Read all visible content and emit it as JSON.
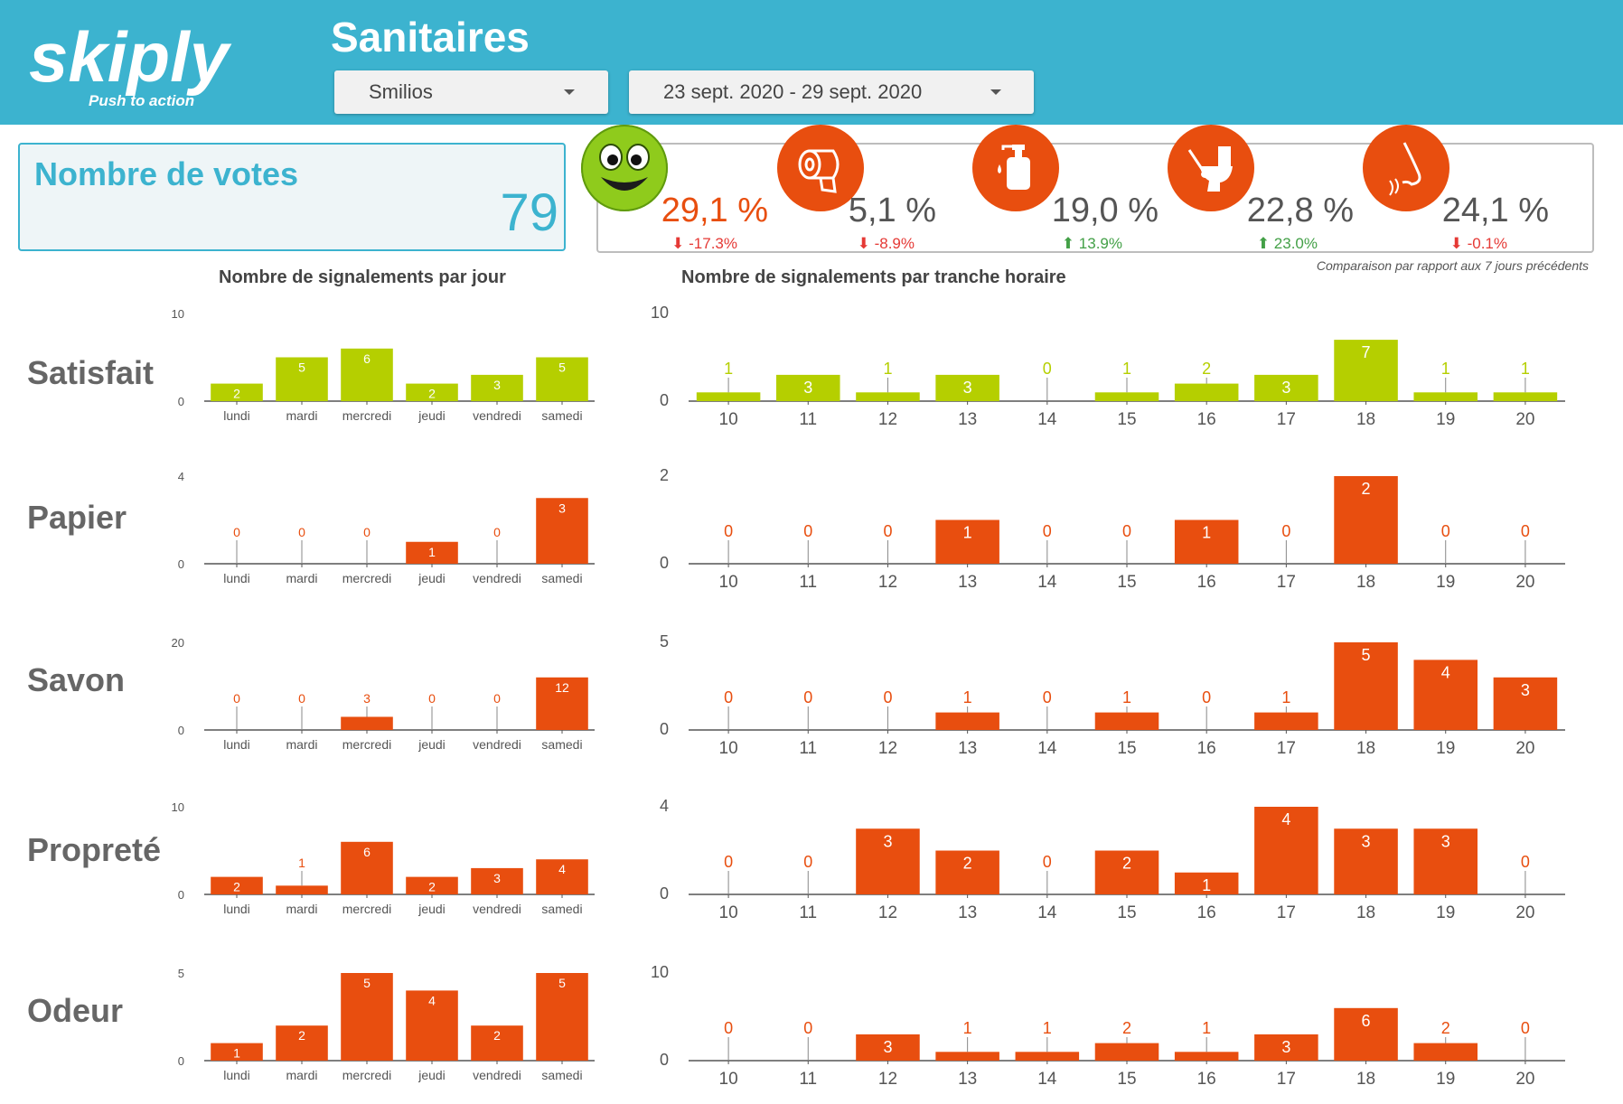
{
  "header": {
    "logo_text": "skiply",
    "logo_tagline": "Push to action",
    "title": "Sanitaires",
    "site_select": "Smilios",
    "date_select": "23 sept. 2020 - 29 sept. 2020"
  },
  "votes": {
    "label": "Nombre de votes",
    "value": "79"
  },
  "kpis": [
    {
      "icon": "smiley-icon",
      "value": "29,1 %",
      "delta": "-17.3%",
      "trend": "down"
    },
    {
      "icon": "toilet-paper-icon",
      "value": "5,1 %",
      "delta": "-8.9%",
      "trend": "down"
    },
    {
      "icon": "soap-icon",
      "value": "19,0 %",
      "delta": "13.9%",
      "trend": "up"
    },
    {
      "icon": "toilet-brush-icon",
      "value": "22,8 %",
      "delta": "23.0%",
      "trend": "up"
    },
    {
      "icon": "nose-icon",
      "value": "24,1 %",
      "delta": "-0.1%",
      "trend": "down"
    }
  ],
  "comparison_note": "Comparaison par rapport aux 7 jours précédents",
  "section_titles": {
    "by_day": "Nombre de signalements par jour",
    "by_hour": "Nombre de signalements par tranche horaire"
  },
  "colors": {
    "green": "#b5cf00",
    "orange": "#e84e0f",
    "header": "#3cb3cf",
    "down": "#e53935",
    "up": "#43a047"
  },
  "chart_data": [
    {
      "type": "bar",
      "row": "Satisfait",
      "group": "jour",
      "color": "green",
      "categories": [
        "lundi",
        "mardi",
        "mercredi",
        "jeudi",
        "vendredi",
        "samedi"
      ],
      "values": [
        2,
        5,
        6,
        2,
        3,
        5
      ],
      "ylim": [
        0,
        10
      ]
    },
    {
      "type": "bar",
      "row": "Satisfait",
      "group": "heure",
      "color": "green",
      "categories": [
        "10",
        "11",
        "12",
        "13",
        "14",
        "15",
        "16",
        "17",
        "18",
        "19",
        "20"
      ],
      "values": [
        1,
        3,
        1,
        3,
        0,
        1,
        2,
        3,
        7,
        1,
        1
      ],
      "ylim": [
        0,
        10
      ]
    },
    {
      "type": "bar",
      "row": "Papier",
      "group": "jour",
      "color": "orange",
      "categories": [
        "lundi",
        "mardi",
        "mercredi",
        "jeudi",
        "vendredi",
        "samedi"
      ],
      "values": [
        0,
        0,
        0,
        1,
        0,
        3
      ],
      "ylim": [
        0,
        4
      ]
    },
    {
      "type": "bar",
      "row": "Papier",
      "group": "heure",
      "color": "orange",
      "categories": [
        "10",
        "11",
        "12",
        "13",
        "14",
        "15",
        "16",
        "17",
        "18",
        "19",
        "20"
      ],
      "values": [
        0,
        0,
        0,
        1,
        0,
        0,
        1,
        0,
        2,
        0,
        0
      ],
      "ylim": [
        0,
        2
      ]
    },
    {
      "type": "bar",
      "row": "Savon",
      "group": "jour",
      "color": "orange",
      "categories": [
        "lundi",
        "mardi",
        "mercredi",
        "jeudi",
        "vendredi",
        "samedi"
      ],
      "values": [
        0,
        0,
        3,
        0,
        0,
        12
      ],
      "ylim": [
        0,
        20
      ]
    },
    {
      "type": "bar",
      "row": "Savon",
      "group": "heure",
      "color": "orange",
      "categories": [
        "10",
        "11",
        "12",
        "13",
        "14",
        "15",
        "16",
        "17",
        "18",
        "19",
        "20"
      ],
      "values": [
        0,
        0,
        0,
        1,
        0,
        1,
        0,
        1,
        5,
        4,
        3
      ],
      "ylim": [
        0,
        5
      ]
    },
    {
      "type": "bar",
      "row": "Propreté",
      "group": "jour",
      "color": "orange",
      "categories": [
        "lundi",
        "mardi",
        "mercredi",
        "jeudi",
        "vendredi",
        "samedi"
      ],
      "values": [
        2,
        1,
        6,
        2,
        3,
        4
      ],
      "ylim": [
        0,
        10
      ]
    },
    {
      "type": "bar",
      "row": "Propreté",
      "group": "heure",
      "color": "orange",
      "categories": [
        "10",
        "11",
        "12",
        "13",
        "14",
        "15",
        "16",
        "17",
        "18",
        "19",
        "20"
      ],
      "values": [
        0,
        0,
        3,
        2,
        0,
        2,
        1,
        4,
        3,
        3,
        0
      ],
      "ylim": [
        0,
        4
      ]
    },
    {
      "type": "bar",
      "row": "Odeur",
      "group": "jour",
      "color": "orange",
      "categories": [
        "lundi",
        "mardi",
        "mercredi",
        "jeudi",
        "vendredi",
        "samedi"
      ],
      "values": [
        1,
        2,
        5,
        4,
        2,
        5
      ],
      "ylim": [
        0,
        5
      ]
    },
    {
      "type": "bar",
      "row": "Odeur",
      "group": "heure",
      "color": "orange",
      "categories": [
        "10",
        "11",
        "12",
        "13",
        "14",
        "15",
        "16",
        "17",
        "18",
        "19",
        "20"
      ],
      "values": [
        0,
        0,
        3,
        1,
        1,
        2,
        1,
        3,
        6,
        2,
        0
      ],
      "ylim": [
        0,
        10
      ]
    }
  ]
}
